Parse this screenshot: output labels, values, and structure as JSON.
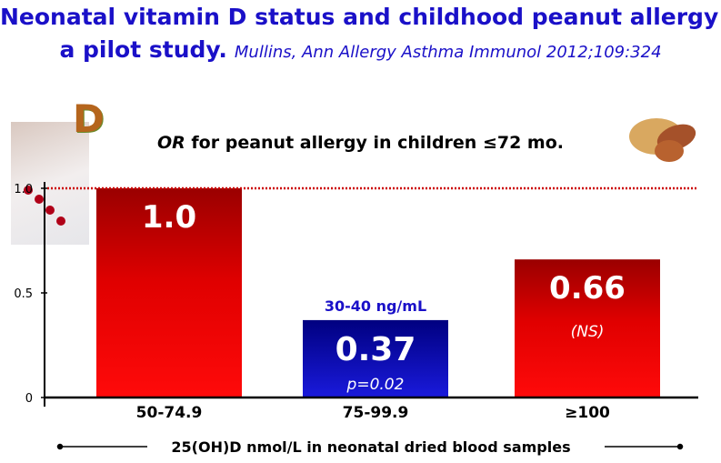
{
  "title_line1": "Neonatal vitamin D status and childhood peanut allergy:",
  "title_line2": "a pilot study.",
  "citation": "Mullins, Ann Allergy Asthma Immunol 2012;109:324",
  "subtitle_prefix": "OR",
  "subtitle_rest": " for peanut allergy in children ≤72 mo.",
  "chart_data": {
    "type": "bar",
    "title": "OR for peanut allergy in children ≤72 mo.",
    "xlabel": "25(OH)D nmol/L in neonatal dried blood samples",
    "ylabel": "",
    "ylim": [
      0,
      1.0
    ],
    "yticks": [
      "0",
      "0.5",
      "1.0"
    ],
    "categories": [
      "50-74.9",
      "75-99.9",
      "≥100"
    ],
    "values": [
      1.0,
      0.37,
      0.66
    ],
    "value_labels": [
      "1.0",
      "0.37",
      "0.66"
    ],
    "annotations": [
      "",
      "p=0.02",
      "(NS)"
    ],
    "highlight_label": "30-40 ng/mL",
    "reference_line": 1.0,
    "colors": {
      "red_top": "#9a0000",
      "red_bottom": "#ff0a0a",
      "blue_top": "#000080",
      "blue_bottom": "#1a1adc",
      "ref_line": "#cc0000",
      "highlight_text": "#1a10c8"
    }
  }
}
